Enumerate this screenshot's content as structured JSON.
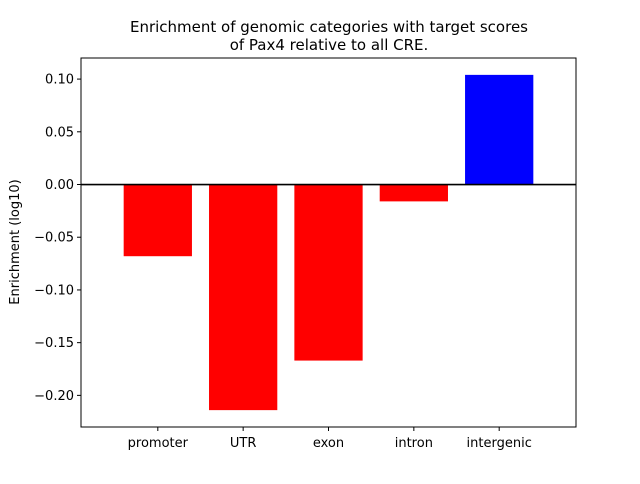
{
  "chart_data": {
    "type": "bar",
    "title": "Enrichment of genomic categories with target scores\nof Pax4 relative to all CRE.",
    "title_lines": [
      "Enrichment of genomic categories with target scores",
      "of Pax4 relative to all CRE."
    ],
    "xlabel": "",
    "ylabel": "Enrichment (log10)",
    "categories": [
      "promoter",
      "UTR",
      "exon",
      "intron",
      "intergenic"
    ],
    "values": [
      -0.068,
      -0.214,
      -0.167,
      -0.016,
      0.104
    ],
    "bar_colors": [
      "#ff0000",
      "#ff0000",
      "#ff0000",
      "#ff0000",
      "#0000ff"
    ],
    "ylim": [
      -0.23,
      0.12
    ],
    "yticks": [
      -0.2,
      -0.15,
      -0.1,
      -0.05,
      0.0,
      0.05,
      0.1
    ],
    "ytick_labels": [
      "−0.20",
      "−0.15",
      "−0.10",
      "−0.05",
      "0.00",
      "0.05",
      "0.10"
    ],
    "grid": false,
    "zero_line": true,
    "legend": "none"
  }
}
